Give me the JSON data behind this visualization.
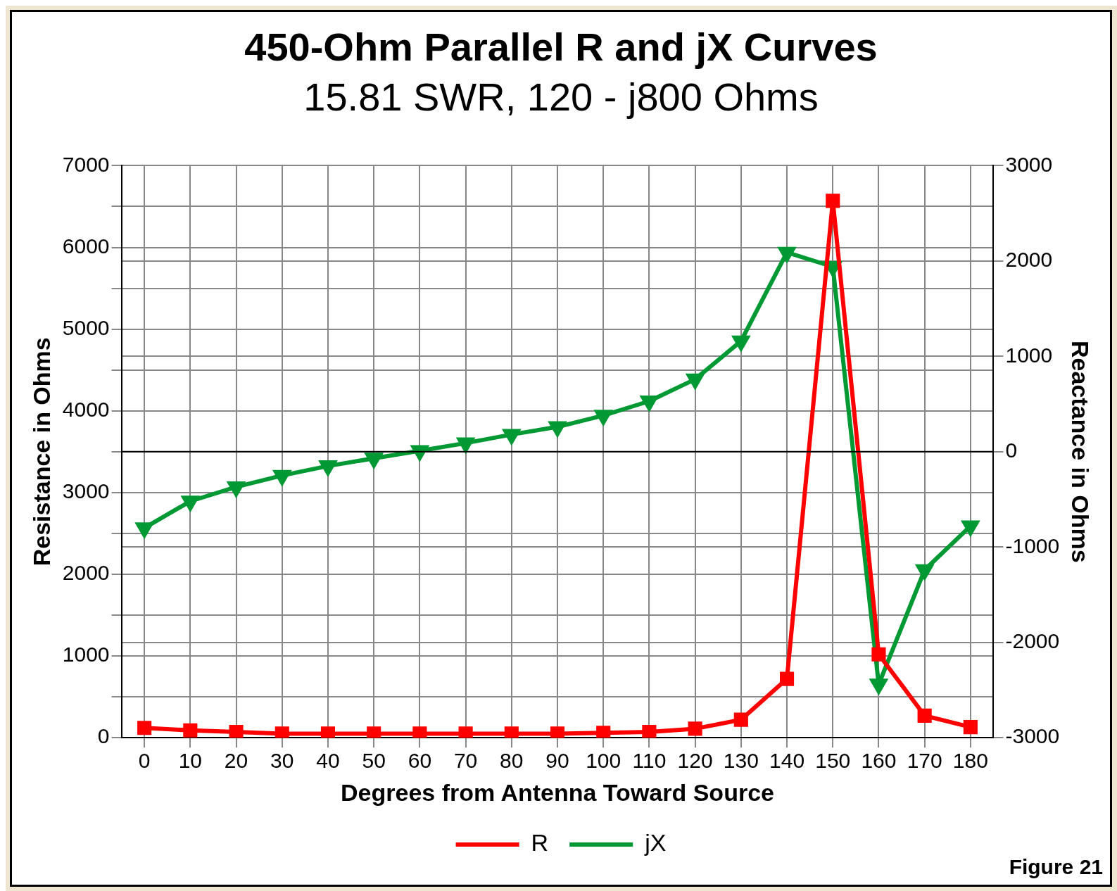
{
  "chart_data": {
    "type": "line",
    "title": "450-Ohm Parallel R and jX Curves",
    "subtitle": "15.81 SWR, 120 - j800 Ohms",
    "xlabel": "Degrees from Antenna Toward Source",
    "ylabel": "Resistance in Ohms",
    "y2label": "Reactance in Ohms",
    "categories": [
      "0",
      "10",
      "20",
      "30",
      "40",
      "50",
      "60",
      "70",
      "80",
      "90",
      "100",
      "110",
      "120",
      "130",
      "140",
      "150",
      "160",
      "170",
      "180"
    ],
    "series": [
      {
        "name": "R",
        "color": "#ff0000",
        "marker": "square",
        "values": [
          120,
          90,
          70,
          50,
          50,
          50,
          50,
          50,
          50,
          50,
          60,
          70,
          110,
          220,
          720,
          6570,
          1020,
          270,
          130
        ]
      },
      {
        "name": "jX",
        "color": "#009933",
        "marker": "triangle",
        "axis": "y2",
        "values": [
          -800,
          -520,
          -370,
          -250,
          -150,
          -70,
          10,
          90,
          180,
          260,
          380,
          530,
          760,
          1160,
          2090,
          1940,
          -2440,
          -1240,
          -780
        ]
      }
    ],
    "ylim": [
      0,
      7000
    ],
    "yticks": [
      0,
      {
        "value": 500,
        "label": null
      },
      1000,
      {
        "value": 1500,
        "label": null
      },
      2000,
      {
        "value": 2500,
        "label": null
      },
      3000,
      {
        "value": 3500,
        "label": null
      },
      4000,
      {
        "value": 4500,
        "label": null
      },
      5000,
      {
        "value": 5500,
        "label": null
      },
      6000,
      {
        "value": 6500,
        "label": null
      },
      7000
    ],
    "y2lim": [
      -3000,
      3000
    ],
    "y2ticks": [
      -3000,
      -2000,
      -1000,
      0,
      1000,
      2000,
      3000
    ],
    "ref_lines": [
      {
        "axis": "y2",
        "value": 0,
        "color": "#000000"
      }
    ],
    "grid": true,
    "legend": "bottom",
    "line_style": "solid",
    "annotations": [
      "Figure 21"
    ]
  }
}
